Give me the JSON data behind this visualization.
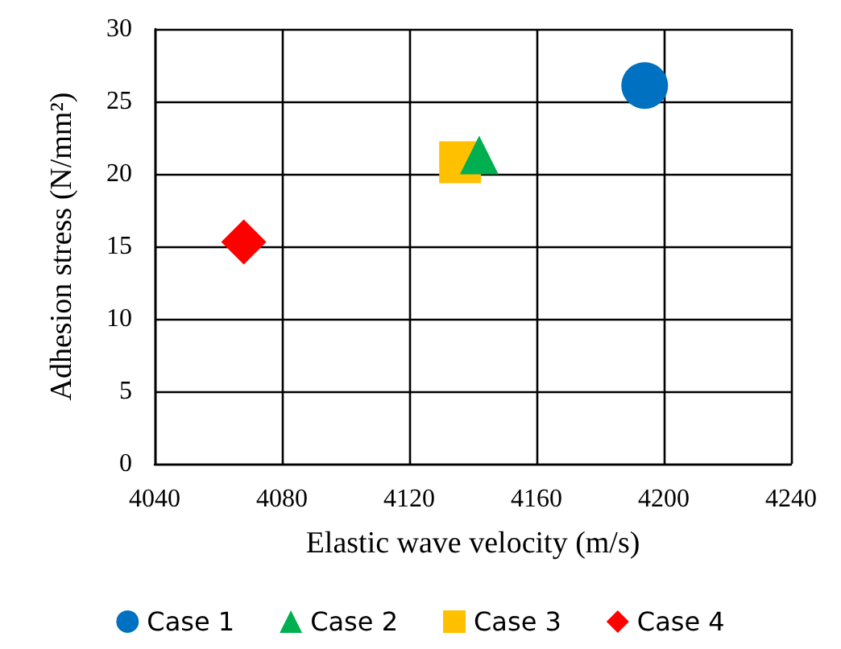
{
  "chart_data": {
    "type": "scatter",
    "xlabel": "Elastic wave velocity (m/s)",
    "ylabel": "Adhesion stress (N/mm²)",
    "xlim": [
      4040,
      4240
    ],
    "xticks": [
      4040,
      4080,
      4120,
      4160,
      4200,
      4240
    ],
    "ylim": [
      0,
      30
    ],
    "yticks": [
      0,
      5,
      10,
      15,
      20,
      25,
      30
    ],
    "grid": true,
    "legend": "bottom",
    "series": [
      {
        "name": "Case 1",
        "color": "#0070c0",
        "marker": "circle",
        "x": [
          4194
        ],
        "values": [
          26.1
        ]
      },
      {
        "name": "Case 2",
        "color": "#00b050",
        "marker": "triangle",
        "x": [
          4142
        ],
        "values": [
          21.3
        ]
      },
      {
        "name": "Case 3",
        "color": "#ffc000",
        "marker": "square",
        "x": [
          4136
        ],
        "values": [
          20.8
        ]
      },
      {
        "name": "Case 4",
        "color": "#ff0000",
        "marker": "diamond",
        "x": [
          4068
        ],
        "values": [
          15.3
        ]
      }
    ]
  }
}
